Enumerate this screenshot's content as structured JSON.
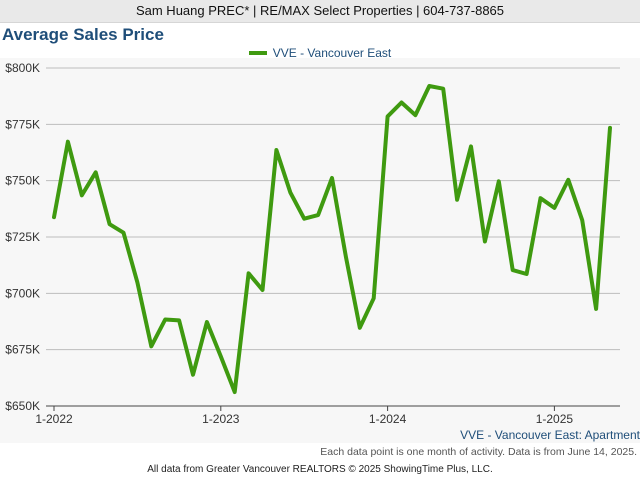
{
  "header": {
    "agent": "Sam Huang PREC* | RE/MAX Select Properties | 604-737-8865"
  },
  "chart_title": "Average Sales Price",
  "legend_label": "VVE - Vancouver East",
  "series_caption": "VVE - Vancouver East: Apartment",
  "note": "Each data point is one month of activity. Data is from June 14, 2025.",
  "credit": "All data from Greater Vancouver REALTORS © 2025 ShowingTime Plus, LLC.",
  "colors": {
    "series": "#3f9a10",
    "grid": "#bdbdbd",
    "title": "#1f4e79"
  },
  "chart_data": {
    "type": "line",
    "title": "Average Sales Price",
    "xlabel": "",
    "ylabel": "",
    "ylim": [
      650000,
      800000
    ],
    "y_ticks": [
      "$650K",
      "$675K",
      "$700K",
      "$725K",
      "$750K",
      "$775K",
      "$800K"
    ],
    "x_ticks": [
      "1-2022",
      "1-2023",
      "1-2024",
      "1-2025"
    ],
    "grid": true,
    "legend_position": "top",
    "x": [
      "2022-01",
      "2022-02",
      "2022-03",
      "2022-04",
      "2022-05",
      "2022-06",
      "2022-07",
      "2022-08",
      "2022-09",
      "2022-10",
      "2022-11",
      "2022-12",
      "2023-01",
      "2023-02",
      "2023-03",
      "2023-04",
      "2023-05",
      "2023-06",
      "2023-07",
      "2023-08",
      "2023-09",
      "2023-10",
      "2023-11",
      "2023-12",
      "2024-01",
      "2024-02",
      "2024-03",
      "2024-04",
      "2024-05",
      "2024-06",
      "2024-07",
      "2024-08",
      "2024-09",
      "2024-10",
      "2024-11",
      "2024-12",
      "2025-01",
      "2025-02",
      "2025-03",
      "2025-04",
      "2025-05"
    ],
    "series": [
      {
        "name": "VVE - Vancouver East",
        "values": [
          733800,
          767300,
          743500,
          753700,
          730700,
          726900,
          704800,
          676500,
          688400,
          688000,
          663900,
          687300,
          672000,
          656200,
          708900,
          701500,
          763600,
          744800,
          733100,
          734700,
          751200,
          716200,
          684700,
          697800,
          778500,
          784700,
          779100,
          792000,
          790800,
          741500,
          765200,
          723000,
          749700,
          710300,
          708600,
          742200,
          737900,
          750400,
          732500,
          693100,
          773400
        ]
      }
    ]
  }
}
